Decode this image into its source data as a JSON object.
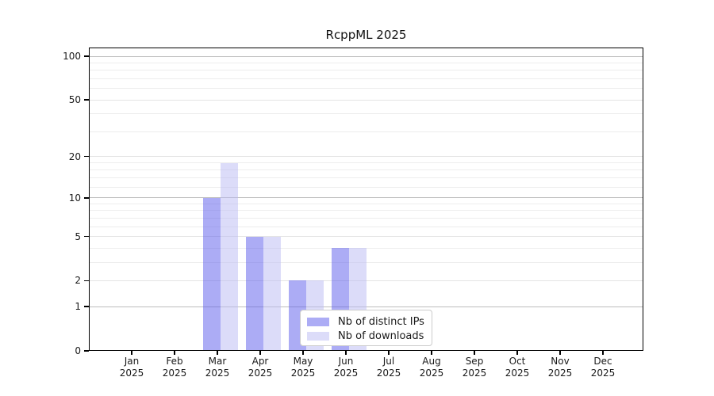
{
  "title": "RcppML 2025",
  "chart_data": {
    "type": "bar",
    "title": "RcppML 2025",
    "categories": [
      "Jan 2025",
      "Feb 2025",
      "Mar 2025",
      "Apr 2025",
      "May 2025",
      "Jun 2025",
      "Jul 2025",
      "Aug 2025",
      "Sep 2025",
      "Oct 2025",
      "Nov 2025",
      "Dec 2025"
    ],
    "month_labels": [
      "Jan",
      "Feb",
      "Mar",
      "Apr",
      "May",
      "Jun",
      "Jul",
      "Aug",
      "Sep",
      "Oct",
      "Nov",
      "Dec"
    ],
    "year_label": "2025",
    "series": [
      {
        "name": "Nb of distinct IPs",
        "color": "rgba(90,90,235,0.5)",
        "color_over_white": "#acacf5",
        "values": [
          10,
          5,
          2,
          4,
          null,
          null,
          null,
          null,
          null,
          null,
          null,
          null
        ]
      },
      {
        "name": "Nb of downloads",
        "color": "rgba(185,185,243,0.5)",
        "color_over_white": "#dcdcf9",
        "values": [
          18,
          5,
          2,
          4,
          null,
          null,
          null,
          null,
          null,
          null,
          null,
          null
        ]
      }
    ],
    "y_ticks": [
      0,
      1,
      2,
      5,
      10,
      20,
      50,
      100
    ],
    "y_minor_gridlines": [
      3,
      4,
      6,
      7,
      8,
      9,
      12,
      14,
      16,
      18,
      30,
      40,
      60,
      70,
      80,
      90
    ],
    "y_decade_gridlines": [
      1,
      10,
      100
    ],
    "y_scale": "log10(1+v)",
    "ylim": [
      0,
      115
    ],
    "xlabel": "",
    "ylabel": "",
    "grid": "horizontal",
    "legend_position": "lower center"
  },
  "colors": {
    "background": "#ffffff",
    "axis": "#000000",
    "gridline_decade": "#bdbdbd",
    "gridline_minor": "#ededed",
    "legend_border": "#cccccc"
  }
}
